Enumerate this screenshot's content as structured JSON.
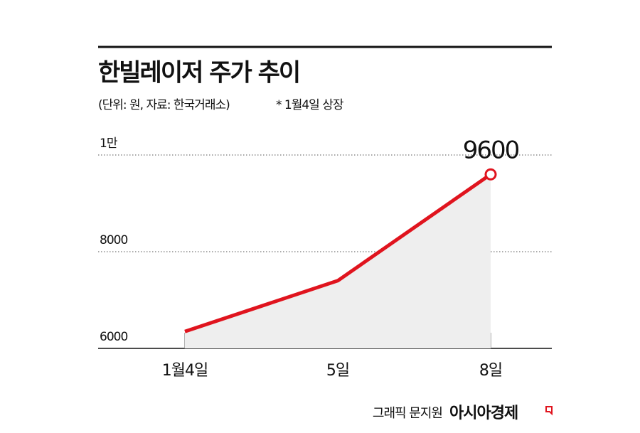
{
  "chart_data": {
    "type": "line",
    "title": "한빌레이저 주가 추이",
    "subtitle": "(단위: 원, 자료: 한국거래소)",
    "note": "* 1월4일 상장",
    "credit": "그래픽 문지원",
    "brand": "아시아경제",
    "categories": [
      "1월4일",
      "5일",
      "8일"
    ],
    "series": [
      {
        "name": "주가",
        "color": "#e0141e",
        "values": [
          6350,
          7400,
          9600
        ]
      }
    ],
    "ylim": [
      6000,
      10000
    ],
    "yticks": [
      6000,
      8000,
      {
        "value": 10000,
        "label": "1만"
      }
    ],
    "grid": true
  }
}
